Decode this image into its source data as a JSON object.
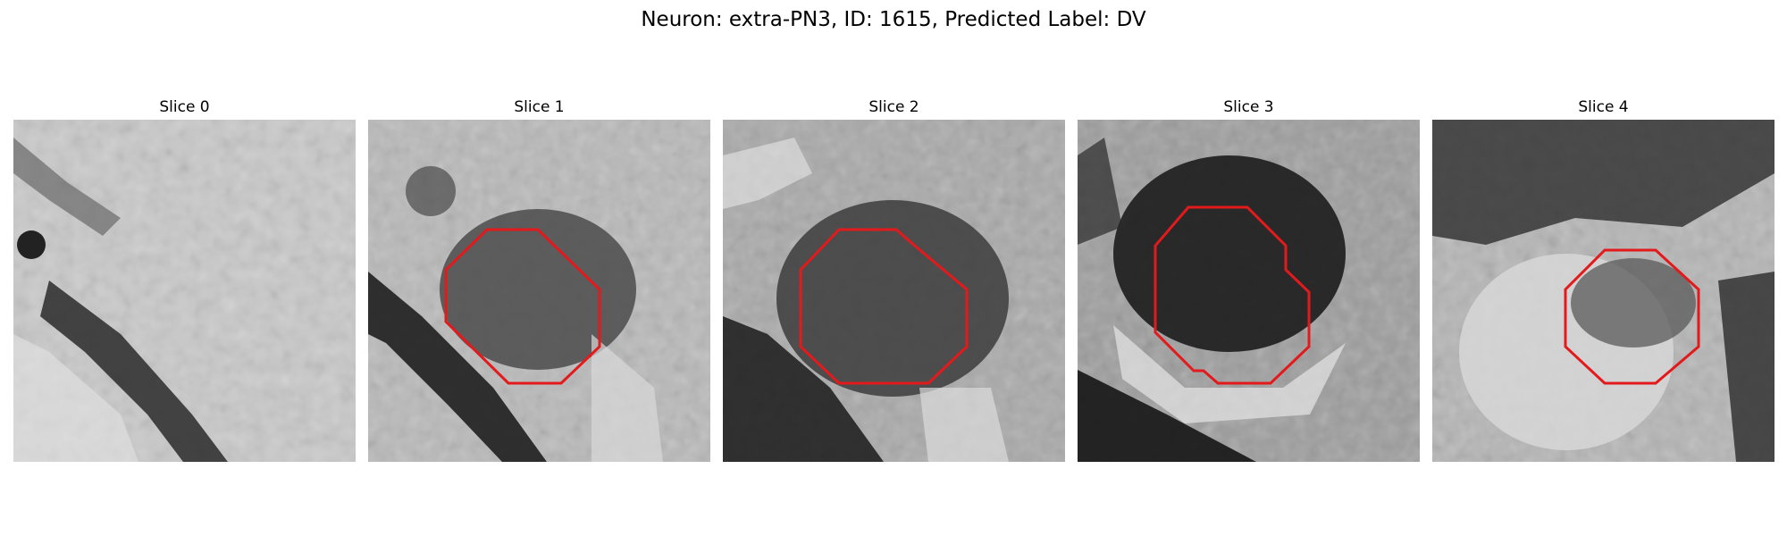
{
  "figure": {
    "title": "Neuron: extra-PN3, ID: 1615, Predicted Label: DV"
  },
  "slices": [
    {
      "title": "Slice 0",
      "has_contour": false
    },
    {
      "title": "Slice 1",
      "has_contour": true
    },
    {
      "title": "Slice 2",
      "has_contour": true
    },
    {
      "title": "Slice 3",
      "has_contour": true
    },
    {
      "title": "Slice 4",
      "has_contour": true
    }
  ],
  "colors": {
    "contour": "#e31a1c",
    "background": "#ffffff"
  },
  "image_style": "grayscale microscopy patch, pixelated"
}
